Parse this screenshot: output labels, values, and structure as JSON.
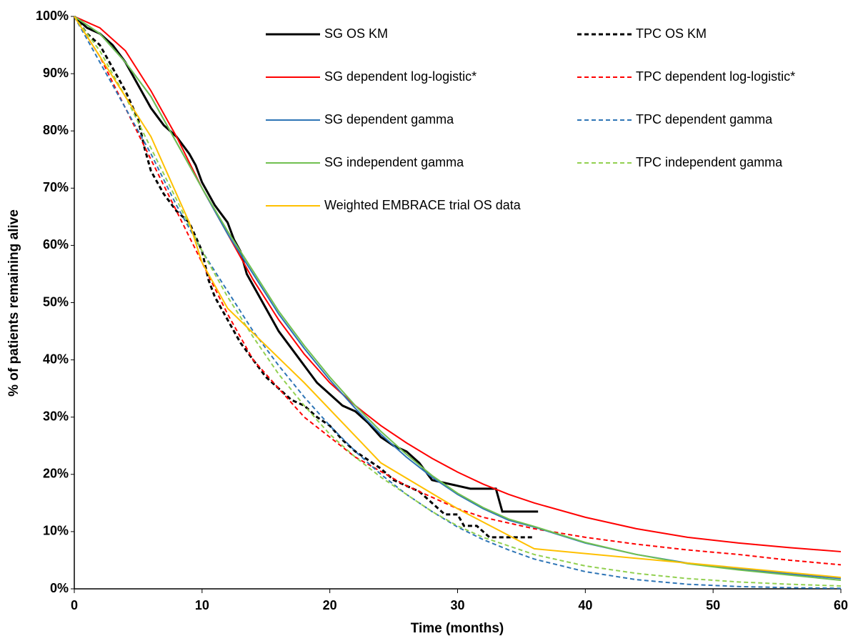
{
  "chart_data": {
    "type": "line",
    "x_label": "Time (months)",
    "y_label": "% of patients remaining alive",
    "xlim": [
      0,
      60
    ],
    "xticks": [
      0,
      10,
      20,
      30,
      40,
      50,
      60
    ],
    "ylim": [
      0,
      100
    ],
    "yticks": [
      {
        "value": 0,
        "label": "0%"
      },
      {
        "value": 10,
        "label": "10%"
      },
      {
        "value": 20,
        "label": "20%"
      },
      {
        "value": 30,
        "label": "30%"
      },
      {
        "value": 40,
        "label": "40%"
      },
      {
        "value": 50,
        "label": "50%"
      },
      {
        "value": 60,
        "label": "60%"
      },
      {
        "value": 70,
        "label": "70%"
      },
      {
        "value": 80,
        "label": "80%"
      },
      {
        "value": 90,
        "label": "90%"
      },
      {
        "value": 100,
        "label": "100%"
      }
    ],
    "grid": false,
    "series": [
      {
        "name": "SG OS KM",
        "color": "#000000",
        "dashed": false,
        "width": 3,
        "x": [
          0,
          1,
          2,
          3,
          4,
          5,
          6,
          7,
          8,
          9,
          9.5,
          10,
          11,
          12,
          12.5,
          13,
          13.5,
          14,
          15,
          16,
          17,
          18,
          19,
          20,
          21,
          22,
          23,
          24,
          25,
          26,
          27,
          28,
          29,
          30,
          31,
          33,
          33.5,
          36.3
        ],
        "values": [
          100,
          98,
          97,
          95,
          92,
          88,
          84,
          81,
          79,
          76,
          74,
          71,
          67,
          64,
          61,
          59,
          55,
          53,
          49,
          45,
          42,
          39,
          36,
          34,
          32,
          31,
          29,
          26.5,
          25,
          24,
          22,
          19,
          18.5,
          18,
          17.5,
          17.5,
          13.5,
          13.5
        ]
      },
      {
        "name": "TPC OS KM",
        "color": "#000000",
        "dashed": true,
        "width": 3,
        "x": [
          0,
          1,
          2,
          3,
          4,
          5,
          5.5,
          6,
          7,
          8,
          9,
          10,
          10.5,
          11,
          12,
          13,
          14,
          15,
          16,
          17,
          18,
          19,
          20,
          21,
          22,
          23,
          24,
          25,
          26,
          27,
          28,
          29,
          30,
          30.5,
          31.5,
          32,
          32.5,
          36
        ],
        "values": [
          100,
          97,
          95,
          91,
          87,
          82,
          77,
          73,
          69,
          66,
          64,
          59,
          54,
          51,
          47,
          43,
          40,
          37,
          35,
          33,
          32,
          30,
          28.5,
          26,
          24,
          22.5,
          21,
          19,
          18,
          17,
          15,
          13,
          13,
          11,
          11,
          10,
          9,
          9
        ]
      },
      {
        "name": "SG dependent log-logistic*",
        "color": "#ff0000",
        "dashed": false,
        "width": 2,
        "x": [
          0,
          2,
          4,
          6,
          8,
          10,
          12,
          14,
          16,
          18,
          20,
          22,
          24,
          26,
          28,
          30,
          32,
          34,
          36,
          40,
          44,
          48,
          52,
          56,
          60
        ],
        "values": [
          100,
          98,
          94,
          87,
          79,
          70,
          62,
          54,
          47,
          41,
          36,
          32,
          28.5,
          25.5,
          22.8,
          20.4,
          18.3,
          16.5,
          15,
          12.5,
          10.5,
          9,
          8,
          7.2,
          6.5
        ]
      },
      {
        "name": "TPC dependent log-logistic*",
        "color": "#ff0000",
        "dashed": true,
        "width": 2,
        "x": [
          0,
          2,
          4,
          6,
          8,
          10,
          12,
          14,
          16,
          18,
          20,
          22,
          24,
          26,
          28,
          30,
          32,
          34,
          36,
          40,
          44,
          48,
          52,
          56,
          60
        ],
        "values": [
          100,
          93,
          84,
          75,
          66,
          57,
          48,
          40,
          35,
          30,
          26.5,
          23,
          20.5,
          18,
          16,
          14,
          12.5,
          11.5,
          10.5,
          9,
          7.8,
          6.8,
          6,
          5,
          4.2
        ]
      },
      {
        "name": "SG dependent gamma",
        "color": "#2e75b6",
        "dashed": false,
        "width": 2,
        "x": [
          0,
          2,
          4,
          6,
          8,
          10,
          12,
          14,
          16,
          18,
          20,
          22,
          24,
          26,
          28,
          30,
          32,
          34,
          36,
          40,
          44,
          48,
          52,
          56,
          60
        ],
        "values": [
          100,
          97,
          92,
          86,
          78,
          70,
          62,
          55,
          48,
          42,
          36.5,
          31.5,
          27,
          23,
          19.5,
          16.5,
          14,
          12,
          10.8,
          8,
          6,
          4.5,
          3.5,
          2.6,
          1.8
        ]
      },
      {
        "name": "TPC dependent gamma",
        "color": "#2e75b6",
        "dashed": true,
        "width": 2,
        "x": [
          0,
          2,
          4,
          6,
          8,
          10,
          12,
          14,
          16,
          18,
          20,
          22,
          24,
          26,
          28,
          30,
          32,
          34,
          36,
          40,
          44,
          48,
          52,
          56,
          60
        ],
        "values": [
          100,
          92,
          84,
          76,
          67,
          59,
          52,
          45,
          39,
          33.5,
          28.5,
          24,
          20,
          16.5,
          13.5,
          10.8,
          8.6,
          6.8,
          5.2,
          3,
          1.6,
          0.8,
          0.4,
          0.2,
          0.1
        ]
      },
      {
        "name": "SG independent gamma",
        "color": "#70c050",
        "dashed": false,
        "width": 2,
        "x": [
          0,
          2,
          4,
          6,
          8,
          10,
          12,
          14,
          16,
          18,
          20,
          22,
          24,
          26,
          28,
          30,
          32,
          34,
          36,
          40,
          44,
          48,
          52,
          56,
          60
        ],
        "values": [
          100,
          97,
          92,
          86,
          78,
          70,
          62.5,
          55.5,
          48.5,
          42.5,
          37,
          32,
          27.5,
          23.5,
          19.8,
          16.7,
          14.2,
          12.2,
          10.9,
          8.1,
          6,
          4.4,
          3.3,
          2.4,
          1.5
        ]
      },
      {
        "name": "TPC independent gamma",
        "color": "#92d050",
        "dashed": true,
        "width": 2,
        "x": [
          0,
          2,
          4,
          6,
          8,
          10,
          12,
          14,
          16,
          18,
          20,
          22,
          24,
          26,
          28,
          30,
          32,
          34,
          36,
          40,
          44,
          48,
          52,
          56,
          60
        ],
        "values": [
          100,
          94,
          86,
          77,
          68,
          59,
          51,
          44,
          37.5,
          32,
          27,
          23,
          19.5,
          16.5,
          13.5,
          11,
          9,
          7.5,
          6,
          4,
          2.7,
          1.8,
          1.2,
          0.8,
          0.5
        ]
      },
      {
        "name": "Weighted EMBRACE trial OS data",
        "color": "#ffc000",
        "dashed": false,
        "width": 2,
        "x": [
          0,
          6,
          9,
          10,
          12,
          18,
          24,
          30,
          36,
          60
        ],
        "values": [
          100,
          79,
          64,
          57,
          49,
          36,
          22,
          14,
          7,
          2
        ]
      }
    ]
  }
}
